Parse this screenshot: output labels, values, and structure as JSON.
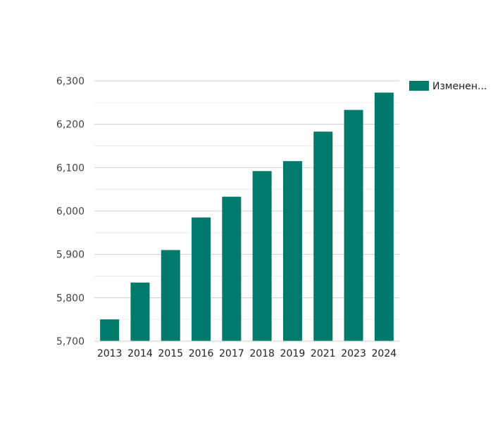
{
  "chart_data": {
    "type": "bar",
    "title": "",
    "xlabel": "",
    "ylabel": "",
    "categories": [
      "2013",
      "2014",
      "2015",
      "2016",
      "2017",
      "2018",
      "2019",
      "2021",
      "2023",
      "2024"
    ],
    "series": [
      {
        "name": "Изменен...",
        "color": "#007a6a",
        "values": [
          5750,
          5835,
          5910,
          5985,
          6033,
          6092,
          6115,
          6183,
          6233,
          6273
        ]
      }
    ],
    "ylim": [
      5700,
      6300
    ],
    "yticks": [
      5700,
      5800,
      5900,
      6000,
      6100,
      6200,
      6300
    ],
    "ytick_labels": [
      "5,700",
      "5,800",
      "5,900",
      "6,000",
      "6,100",
      "6,200",
      "6,300"
    ],
    "grid": true,
    "legend_position": "right"
  }
}
